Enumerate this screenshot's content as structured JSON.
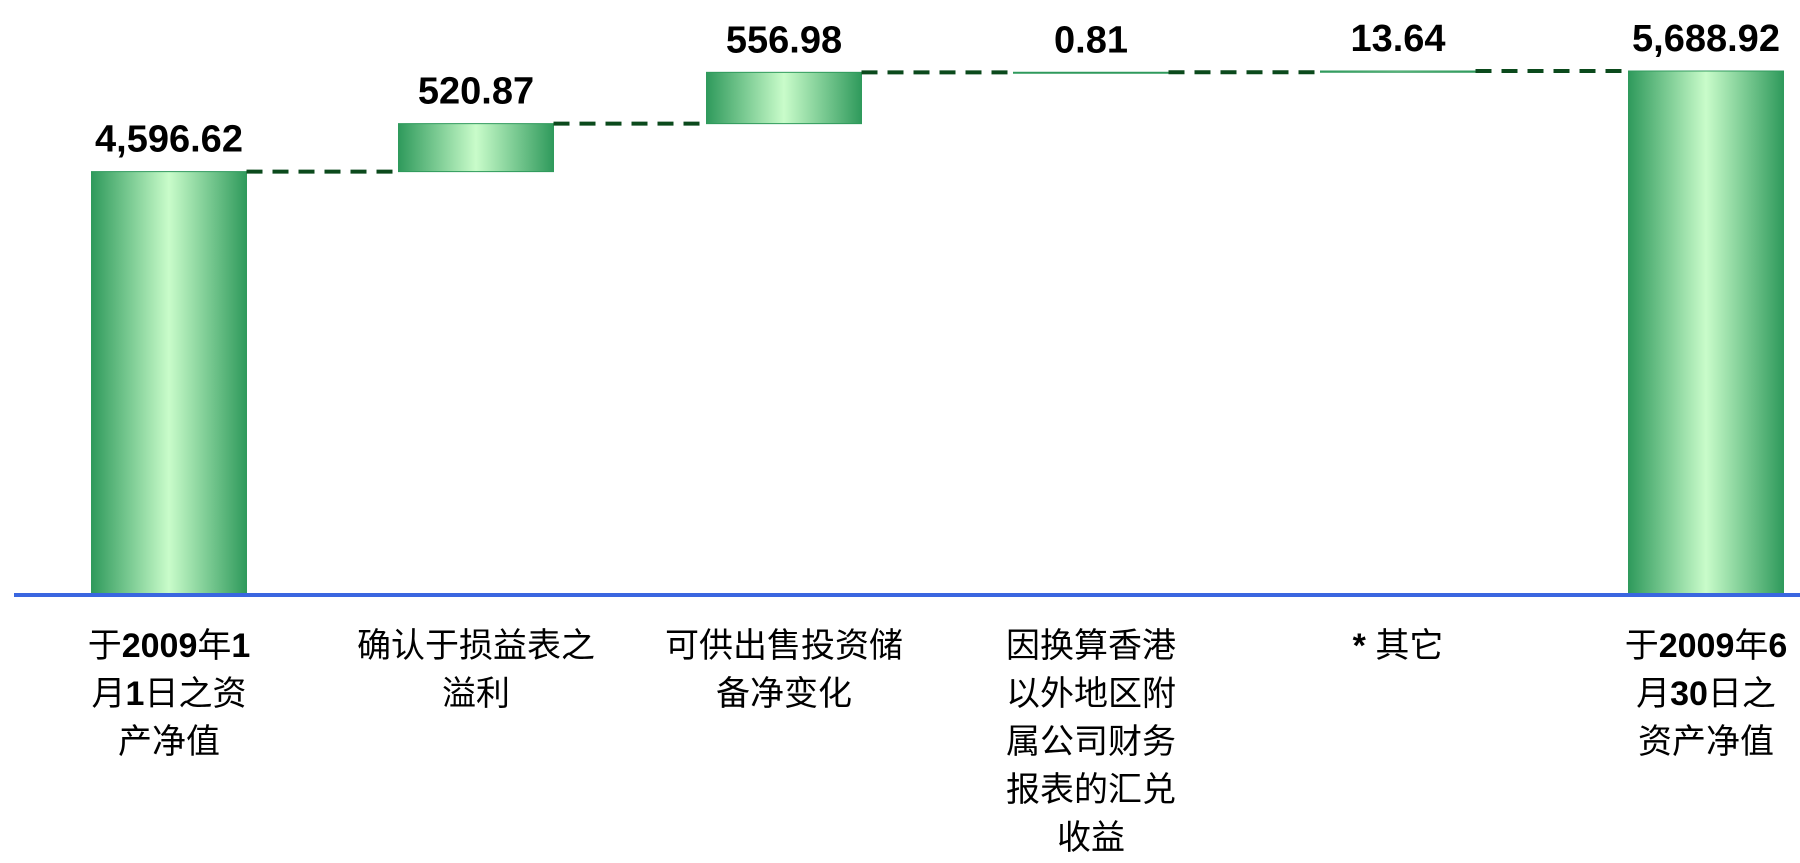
{
  "chart_data": {
    "type": "waterfall",
    "categories": [
      "于2009年1月1日之资产净值",
      "确认于损益表之溢利",
      "可供出售投资储备净变化",
      "因换算香港以外地区附属公司财务报表的汇兑收益",
      "* 其它",
      "于2009年6月30日之资产净值"
    ],
    "values": [
      4596.62,
      520.87,
      556.98,
      0.81,
      13.64,
      5688.92
    ],
    "value_labels": [
      "4,596.62",
      "520.87",
      "556.98",
      "0.81",
      "13.64",
      "5,688.92"
    ],
    "color": "#2f9a5c",
    "connector_color": "#0b4a1c",
    "axis_color": "#3a66e0"
  }
}
